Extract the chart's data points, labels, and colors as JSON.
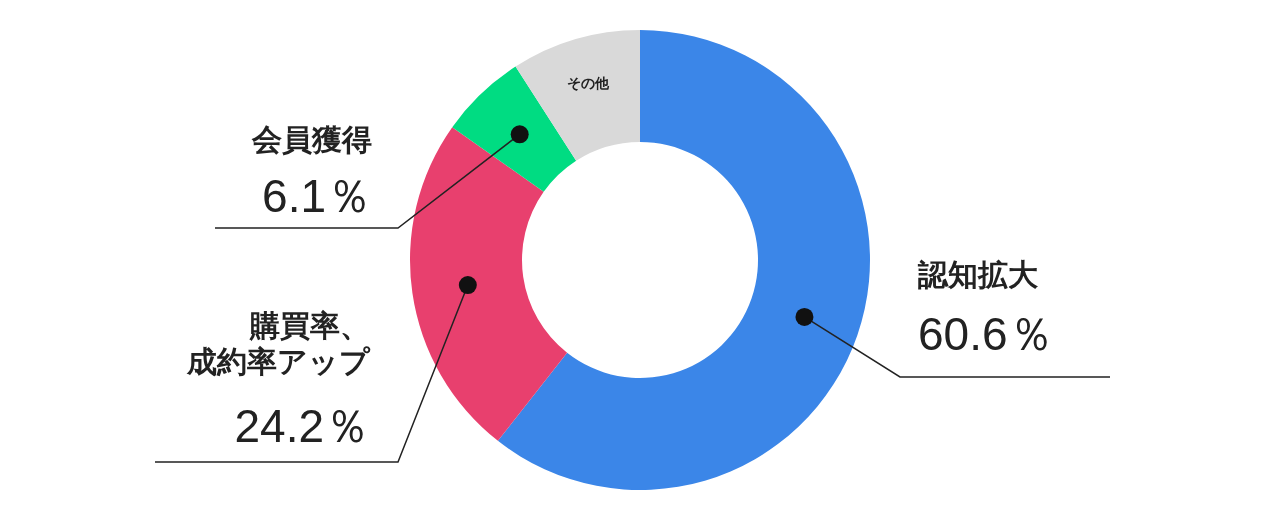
{
  "chart_data": {
    "type": "donut",
    "categories": [
      "認知拡大",
      "購買率、成約率アップ",
      "会員獲得",
      "その他"
    ],
    "values": [
      60.6,
      24.2,
      6.1,
      9.1
    ],
    "colors": [
      "#3b86e8",
      "#e8406e",
      "#00dc82",
      "#d9d9d9"
    ],
    "value_labels": [
      "60.6％",
      "24.2％",
      "6.1％",
      null
    ]
  }
}
